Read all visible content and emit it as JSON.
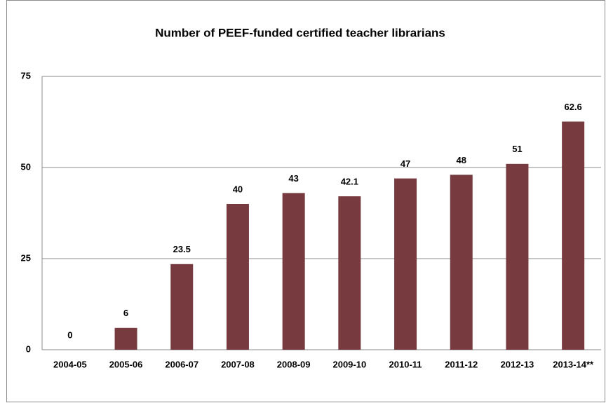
{
  "chart_data": {
    "type": "bar",
    "title": "Number of PEEF-funded certified teacher librarians",
    "categories": [
      "2004-05",
      "2005-06",
      "2006-07",
      "2007-08",
      "2008-09",
      "2009-10",
      "2010-11",
      "2011-12",
      "2012-13",
      "2013-14**"
    ],
    "values": [
      0,
      6,
      23.5,
      40,
      43,
      42.1,
      47,
      48,
      51,
      62.6
    ],
    "color": "#773b3f",
    "ylim": [
      0,
      75
    ],
    "yticks": [
      0,
      25,
      50,
      75
    ],
    "grid": true
  }
}
